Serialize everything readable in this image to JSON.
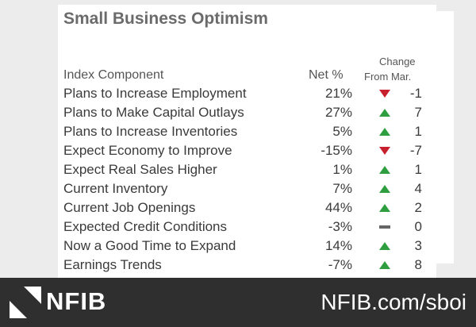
{
  "title": "Small Business Optimism",
  "headers": {
    "component": "Index Component",
    "net": "Net %",
    "change_line1": "Change",
    "change_line2": "From Mar."
  },
  "rows": [
    {
      "name": "Plans to Increase Employment",
      "net": "21%",
      "direction": "down",
      "change": "-1"
    },
    {
      "name": "Plans to Make Capital Outlays",
      "net": "27%",
      "direction": "up",
      "change": "7"
    },
    {
      "name": "Plans to Increase Inventories",
      "net": "5%",
      "direction": "up",
      "change": "1"
    },
    {
      "name": "Expect Economy to Improve",
      "net": "-15%",
      "direction": "down",
      "change": "-7"
    },
    {
      "name": "Expect Real Sales Higher",
      "net": "1%",
      "direction": "up",
      "change": "1"
    },
    {
      "name": "Current Inventory",
      "net": "7%",
      "direction": "up",
      "change": "4"
    },
    {
      "name": "Current Job Openings",
      "net": "44%",
      "direction": "up",
      "change": "2"
    },
    {
      "name": "Expected Credit Conditions",
      "net": "-3%",
      "direction": "flat",
      "change": "0"
    },
    {
      "name": "Now a Good Time to Expand",
      "net": "14%",
      "direction": "up",
      "change": "3"
    },
    {
      "name": "Earnings Trends",
      "net": "-7%",
      "direction": "up",
      "change": "8"
    }
  ],
  "icons": {
    "up": "triangle-up-icon",
    "down": "triangle-down-icon",
    "flat": "dash-icon"
  },
  "colors": {
    "up": "#2e9e3f",
    "down": "#c8202f",
    "flat": "#666666"
  },
  "footer": {
    "logo_text": "NFIB",
    "url": "NFIB.com/sboi"
  }
}
